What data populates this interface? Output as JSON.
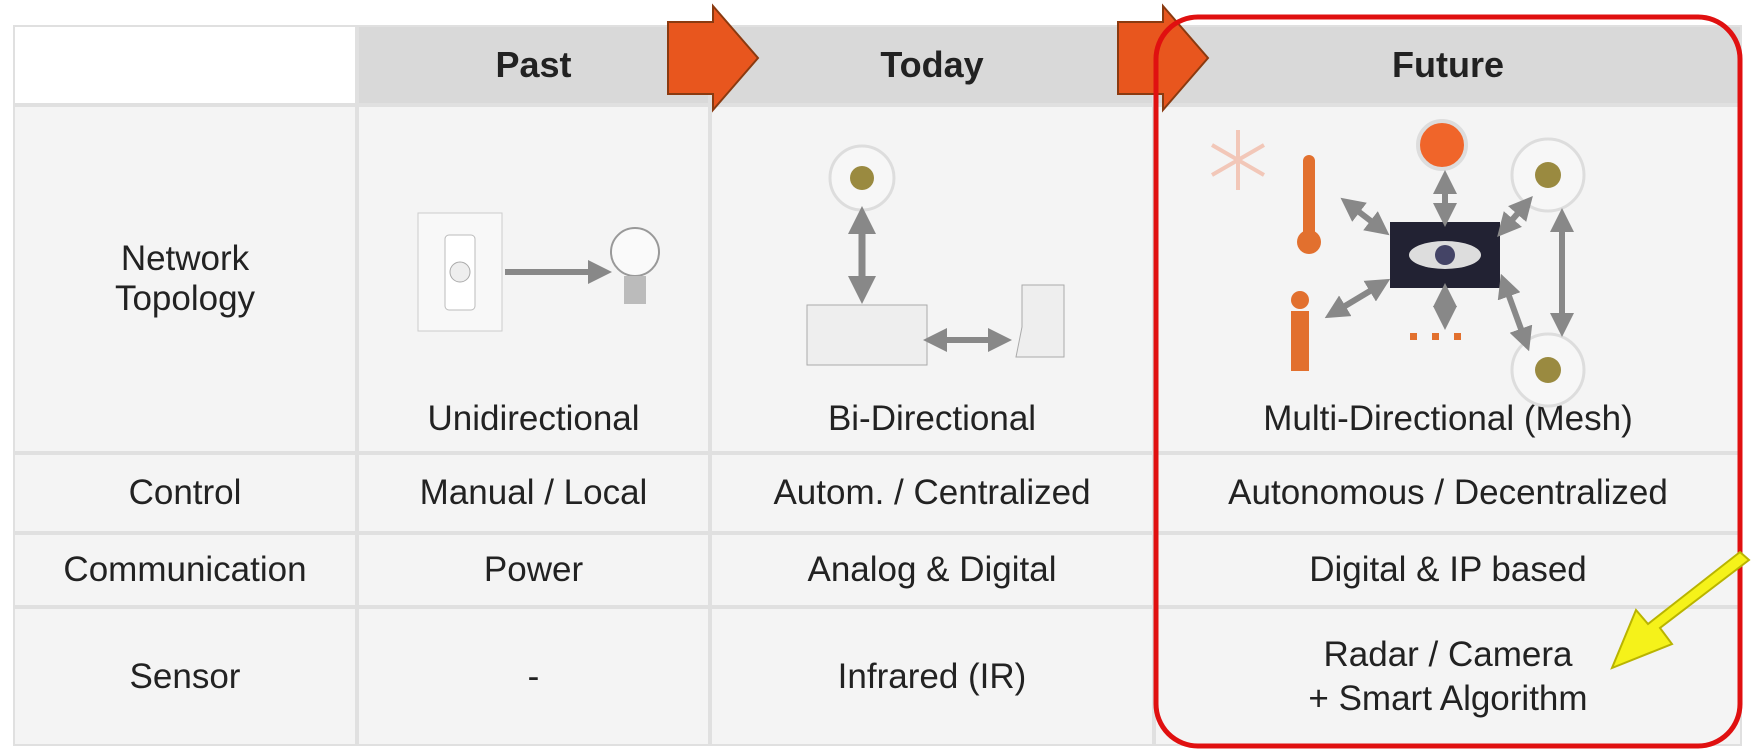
{
  "header": {
    "columns": [
      "Past",
      "Today",
      "Future"
    ]
  },
  "rows": [
    {
      "label": "Network Topology",
      "cells": [
        "Unidirectional",
        "Bi-Directional",
        "Multi-Directional (Mesh)"
      ]
    },
    {
      "label": "Control",
      "cells": [
        "Manual / Local",
        "Autom. / Centralized",
        "Autonomous / Decentralized"
      ]
    },
    {
      "label": "Communication",
      "cells": [
        "Power",
        "Analog & Digital",
        "Digital & IP based"
      ]
    },
    {
      "label": "Sensor",
      "cells": [
        "-",
        "Infrared (IR)",
        [
          "Radar / Camera",
          "+ Smart Algorithm"
        ]
      ]
    }
  ]
}
